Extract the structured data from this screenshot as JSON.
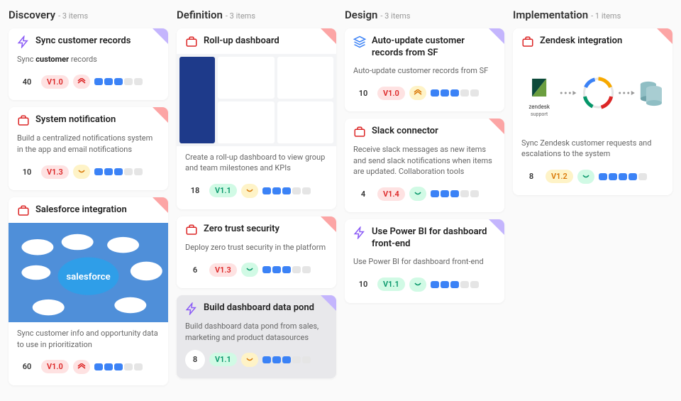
{
  "columns": [
    {
      "title": "Discovery",
      "count": "- 3 items"
    },
    {
      "title": "Definition",
      "count": "- 3 items"
    },
    {
      "title": "Design",
      "count": "- 3 items"
    },
    {
      "title": "Implementation",
      "count": "- 1 items"
    }
  ],
  "cards": {
    "sync": {
      "title": "Sync customer records",
      "desc_a": "Sync ",
      "desc_b": "customer",
      "desc_c": " records",
      "score": "40",
      "score_pct": 40,
      "score_color": "#3b82f6",
      "version": "V1.0",
      "v_bg": "#fee2e2",
      "v_fg": "#dc2626",
      "trend_bg": "#fee2e2",
      "trend_dir": "up",
      "trend_fg": "#dc2626",
      "bars_on": 3,
      "bar_color": "#3b82f6",
      "corner": "#c4b5fd"
    },
    "sysnotif": {
      "title": "System notification",
      "desc": "Build a centralized notifications system in the app and email notifications",
      "score": "10",
      "score_pct": 10,
      "score_color": "#3b82f6",
      "version": "V1.3",
      "v_bg": "#fee2e2",
      "v_fg": "#dc2626",
      "trend_bg": "#fef3c7",
      "trend_dir": "down",
      "trend_fg": "#d97706",
      "bars_on": 3,
      "bar_color": "#3b82f6",
      "corner": "#fca5a5"
    },
    "sf": {
      "title": "Salesforce integration",
      "desc": "Sync customer info and opportunity data to use in prioritization",
      "score": "60",
      "score_pct": 60,
      "score_color": "#3b82f6",
      "version": "V1.0",
      "v_bg": "#fee2e2",
      "v_fg": "#dc2626",
      "trend_bg": "#fee2e2",
      "trend_dir": "up",
      "trend_fg": "#dc2626",
      "bars_on": 3,
      "bar_color": "#3b82f6",
      "corner": "#fca5a5",
      "img_label": "salesforce"
    },
    "rollup": {
      "title": "Roll-up dashboard",
      "desc": "Create a roll-up dashboard to view group and team milestones and KPIs",
      "score": "18",
      "score_pct": 18,
      "score_color": "#3b82f6",
      "version": "V1.1",
      "v_bg": "#d1fae5",
      "v_fg": "#059669",
      "trend_bg": "#fef3c7",
      "trend_dir": "down",
      "trend_fg": "#d97706",
      "bars_on": 3,
      "bar_color": "#3b82f6",
      "corner": "#fca5a5"
    },
    "zts": {
      "title": "Zero trust security",
      "desc": "Deploy zero trust security in the platform",
      "score": "6",
      "score_pct": 6,
      "score_color": "#3b82f6",
      "version": "V1.3",
      "v_bg": "#fee2e2",
      "v_fg": "#dc2626",
      "trend_bg": "#d1fae5",
      "trend_dir": "down",
      "trend_fg": "#059669",
      "bars_on": 3,
      "bar_color": "#3b82f6",
      "corner": "#fca5a5"
    },
    "pond": {
      "title": "Build dashboard data pond",
      "desc": "Build dashboard data pond from sales, marketing and product datasources",
      "score": "8",
      "score_pct": 8,
      "score_color": "#3b82f6",
      "version": "V1.1",
      "v_bg": "#d1fae5",
      "v_fg": "#059669",
      "trend_bg": "#fef3c7",
      "trend_dir": "down",
      "trend_fg": "#d97706",
      "bars_on": 3,
      "bar_color": "#3b82f6",
      "corner": "#c4b5fd"
    },
    "autoupdate": {
      "title": "Auto-update customer records from SF",
      "desc": "Auto-update customer records from SF",
      "score": "10",
      "score_pct": 10,
      "score_color": "#3b82f6",
      "version": "V1.0",
      "v_bg": "#fee2e2",
      "v_fg": "#dc2626",
      "trend_bg": "#fef3c7",
      "trend_dir": "up",
      "trend_fg": "#d97706",
      "bars_on": 3,
      "bar_color": "#3b82f6",
      "corner": "#c4b5fd"
    },
    "slack": {
      "title": "Slack connector",
      "desc": "Receive slack messages as new items and send slack notifications when items are updated. Collaboration tools",
      "score": "4",
      "score_pct": 4,
      "score_color": "#3b82f6",
      "version": "V1.4",
      "v_bg": "#fee2e2",
      "v_fg": "#dc2626",
      "trend_bg": "#d1fae5",
      "trend_dir": "down",
      "trend_fg": "#059669",
      "bars_on": 3,
      "bar_color": "#3b82f6",
      "corner": "#fca5a5"
    },
    "powerbi": {
      "title": "Use Power BI for dashboard front-end",
      "desc": "Use Power BI for dashboard front-end",
      "score": "10",
      "score_pct": 10,
      "score_color": "#3b82f6",
      "version": "V1.1",
      "v_bg": "#d1fae5",
      "v_fg": "#059669",
      "trend_bg": "#d1fae5",
      "trend_dir": "down",
      "trend_fg": "#059669",
      "bars_on": 3,
      "bar_color": "#3b82f6",
      "corner": "#c4b5fd"
    },
    "zendesk": {
      "title": "Zendesk integration",
      "desc": "Sync Zendesk customer requests and escalations to the system",
      "score": "8",
      "score_pct": 8,
      "score_color": "#3b82f6",
      "version": "V1.2",
      "v_bg": "#fef3c7",
      "v_fg": "#d97706",
      "trend_bg": "#d1fae5",
      "trend_dir": "down",
      "trend_fg": "#059669",
      "bars_on": 4,
      "bar_color": "#3b82f6",
      "corner": "#fca5a5",
      "img_label": "zendesk support"
    }
  },
  "icons": {
    "bolt": {
      "color": "#8b5cf6"
    },
    "briefcase": {
      "color": "#dc2626"
    },
    "layers": {
      "color": "#3b82f6"
    }
  }
}
